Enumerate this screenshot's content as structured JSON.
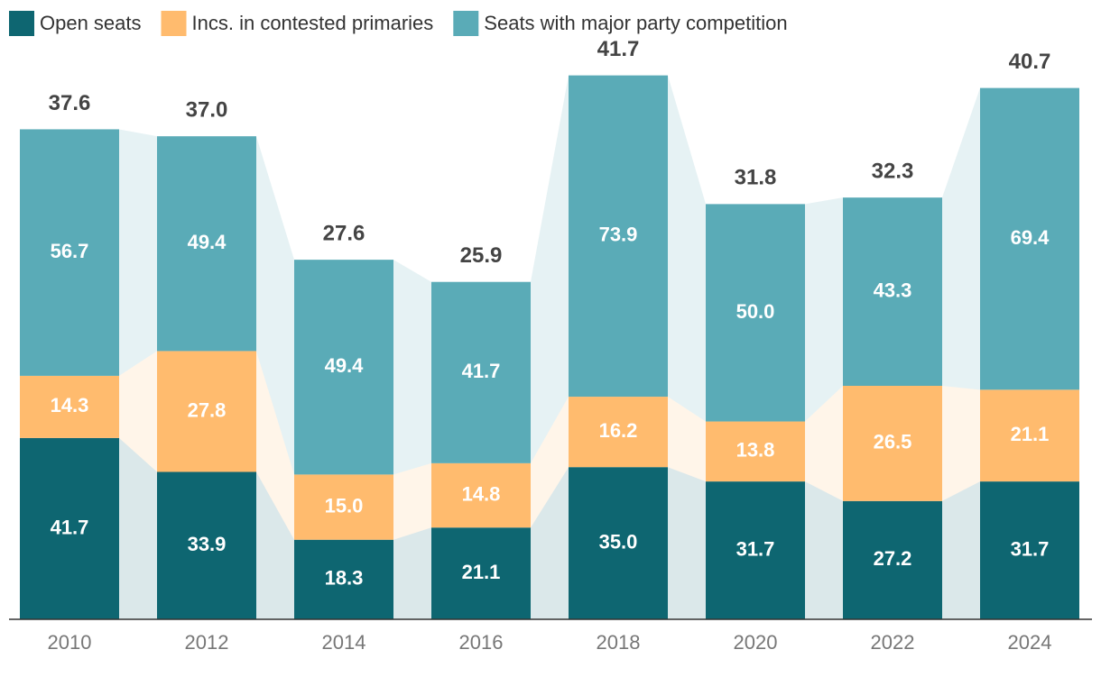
{
  "chart_data": {
    "type": "stacked_bar",
    "categories": [
      "2010",
      "2012",
      "2014",
      "2016",
      "2018",
      "2020",
      "2022",
      "2024"
    ],
    "series": [
      {
        "name": "Open seats",
        "color": "#0e6671",
        "values": [
          41.7,
          33.9,
          18.3,
          21.1,
          35.0,
          31.7,
          27.2,
          31.7
        ],
        "value_labels": [
          "41.7",
          "33.9",
          "18.3",
          "21.1",
          "35.0",
          "31.7",
          "27.2",
          "31.7"
        ]
      },
      {
        "name": "Incs. in contested primaries",
        "color": "#ffbb6e",
        "values": [
          14.3,
          27.8,
          15.0,
          14.8,
          16.2,
          13.8,
          26.5,
          21.1
        ],
        "value_labels": [
          "14.3",
          "27.8",
          "15.0",
          "14.8",
          "16.2",
          "13.8",
          "26.5",
          "21.1"
        ]
      },
      {
        "name": "Seats with major party competition",
        "color": "#5aabb7",
        "values": [
          56.7,
          49.4,
          49.4,
          41.7,
          73.9,
          50.0,
          43.3,
          69.4
        ],
        "value_labels": [
          "56.7",
          "49.4",
          "49.4",
          "41.7",
          "73.9",
          "50.0",
          "43.3",
          "69.4"
        ]
      }
    ],
    "averages": {
      "values": [
        37.6,
        37.0,
        27.6,
        25.9,
        41.7,
        31.8,
        32.3,
        40.7
      ],
      "value_labels": [
        "37.6",
        "37.0",
        "27.6",
        "25.9",
        "41.7",
        "31.8",
        "32.3",
        "40.7"
      ]
    },
    "ylim": [
      0,
      130
    ]
  }
}
